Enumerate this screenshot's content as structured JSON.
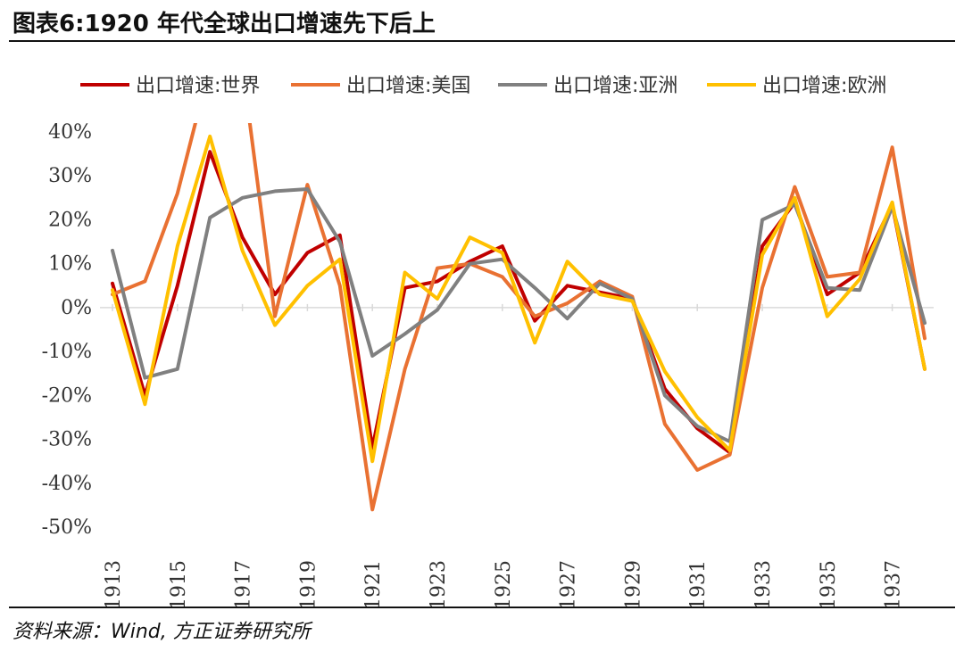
{
  "figure": {
    "title": "图表6:1920 年代全球出口增速先下后上",
    "source": "资料来源：Wind, 方正证券研究所"
  },
  "chart_data": {
    "type": "line",
    "title": "",
    "xlabel": "",
    "ylabel": "",
    "x": [
      1913,
      1914,
      1915,
      1916,
      1917,
      1918,
      1919,
      1920,
      1921,
      1922,
      1923,
      1924,
      1925,
      1926,
      1927,
      1928,
      1929,
      1930,
      1931,
      1932,
      1933,
      1934,
      1935,
      1936,
      1937,
      1938
    ],
    "x_tick_labels": [
      "1913",
      "1915",
      "1917",
      "1919",
      "1921",
      "1923",
      "1925",
      "1927",
      "1929",
      "1931",
      "1933",
      "1935",
      "1937"
    ],
    "x_tick_values": [
      1913,
      1915,
      1917,
      1919,
      1921,
      1923,
      1925,
      1927,
      1929,
      1931,
      1933,
      1935,
      1937
    ],
    "ylim": [
      -50,
      40
    ],
    "y_tick_values": [
      40,
      30,
      20,
      10,
      0,
      -10,
      -20,
      -30,
      -40,
      -50
    ],
    "y_tick_labels": [
      "40%",
      "30%",
      "20%",
      "10%",
      "0%",
      "-10%",
      "-20%",
      "-30%",
      "-40%",
      "-50%"
    ],
    "grid": false,
    "zero_line": true,
    "legend_position": "top",
    "series": [
      {
        "name": "出口增速:世界",
        "color": "#C00000",
        "values": [
          5.5,
          -20,
          5,
          35.5,
          16,
          3,
          12.5,
          16.5,
          -32,
          4.5,
          6,
          10.5,
          14,
          -3,
          5,
          3.5,
          2,
          -18.5,
          -27.5,
          -33,
          14,
          24,
          3,
          8,
          23.5,
          -14
        ]
      },
      {
        "name": "出口增速:美国",
        "color": "#E97132",
        "values": [
          3,
          6,
          26,
          55,
          55,
          -2,
          28,
          5,
          -46,
          -14,
          9,
          10,
          7,
          -2,
          1,
          6,
          2.5,
          -26.5,
          -37,
          -33.5,
          4.5,
          27.5,
          7,
          8,
          36.5,
          -7
        ]
      },
      {
        "name": "出口增速:亚洲",
        "color": "#808080",
        "values": [
          13,
          -16,
          -14,
          20.5,
          25,
          26.5,
          27,
          15,
          -11,
          -6,
          -0.5,
          10,
          11,
          4.5,
          -2.5,
          5.5,
          2,
          -20,
          -27,
          -30.5,
          20,
          23.5,
          4.5,
          4,
          23,
          -3.5
        ]
      },
      {
        "name": "出口增速:欧洲",
        "color": "#FFC000",
        "values": [
          4,
          -22,
          14,
          39,
          13,
          -4,
          5,
          11,
          -35,
          8,
          2,
          16,
          12.5,
          -8,
          10.5,
          3,
          1.5,
          -14.5,
          -25,
          -32.5,
          12,
          25,
          -2,
          6.5,
          24,
          -14
        ]
      }
    ]
  }
}
